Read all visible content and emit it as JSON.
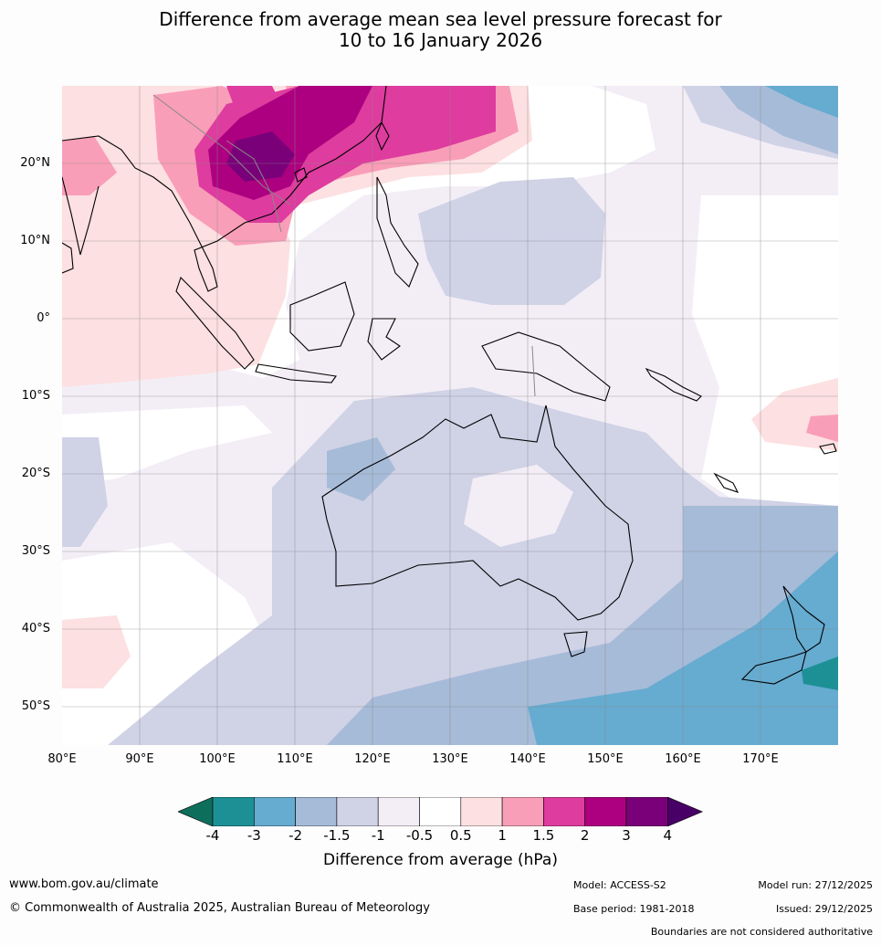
{
  "title": {
    "line1": "Difference from average mean sea level pressure forecast for",
    "line2": "10 to 16 January 2026"
  },
  "map": {
    "lat_labels": [
      "20°N",
      "10°N",
      "0°",
      "10°S",
      "20°S",
      "30°S",
      "40°S",
      "50°S"
    ],
    "lon_labels": [
      "80°E",
      "90°E",
      "100°E",
      "110°E",
      "120°E",
      "130°E",
      "140°E",
      "150°E",
      "160°E",
      "170°E"
    ],
    "land_outline_color": "#000000",
    "boundary_color": "#888888"
  },
  "colorbar": {
    "title": "Difference from average (hPa)",
    "bins": [
      {
        "label": "< -4",
        "color": "#0e6e5c"
      },
      {
        "label": "-4 to -3",
        "color": "#1d9096"
      },
      {
        "label": "-3 to -2",
        "color": "#66abd0"
      },
      {
        "label": "-2 to -1.5",
        "color": "#a6bbd8"
      },
      {
        "label": "-1.5 to -1",
        "color": "#d0d2e6"
      },
      {
        "label": "-1 to -0.5",
        "color": "#f3eef6"
      },
      {
        "label": "-0.5 to 0.5",
        "color": "#ffffff"
      },
      {
        "label": "0.5 to 1",
        "color": "#fde0e1"
      },
      {
        "label": "1 to 1.5",
        "color": "#f99eb8"
      },
      {
        "label": "1.5 to 2",
        "color": "#de3c9e"
      },
      {
        "label": "2 to 3",
        "color": "#ad0080"
      },
      {
        "label": "3 to 4",
        "color": "#7a0079"
      },
      {
        "label": "> 4",
        "color": "#480066"
      }
    ],
    "tick_labels": [
      "-4",
      "-3",
      "-2",
      "-1.5",
      "-1",
      "-0.5",
      "0.5",
      "1",
      "1.5",
      "2",
      "3",
      "4"
    ]
  },
  "footer": {
    "website": "www.bom.gov.au/climate",
    "copyright": "© Commonwealth of Australia 2025, Australian Bureau of Meteorology",
    "model": "Model: ACCESS-S2",
    "base_period": "Base period: 1981-2018",
    "model_run": "Model run: 27/12/2025",
    "issued": "Issued: 29/12/2025",
    "disclaimer": "Boundaries are not considered authoritative"
  }
}
